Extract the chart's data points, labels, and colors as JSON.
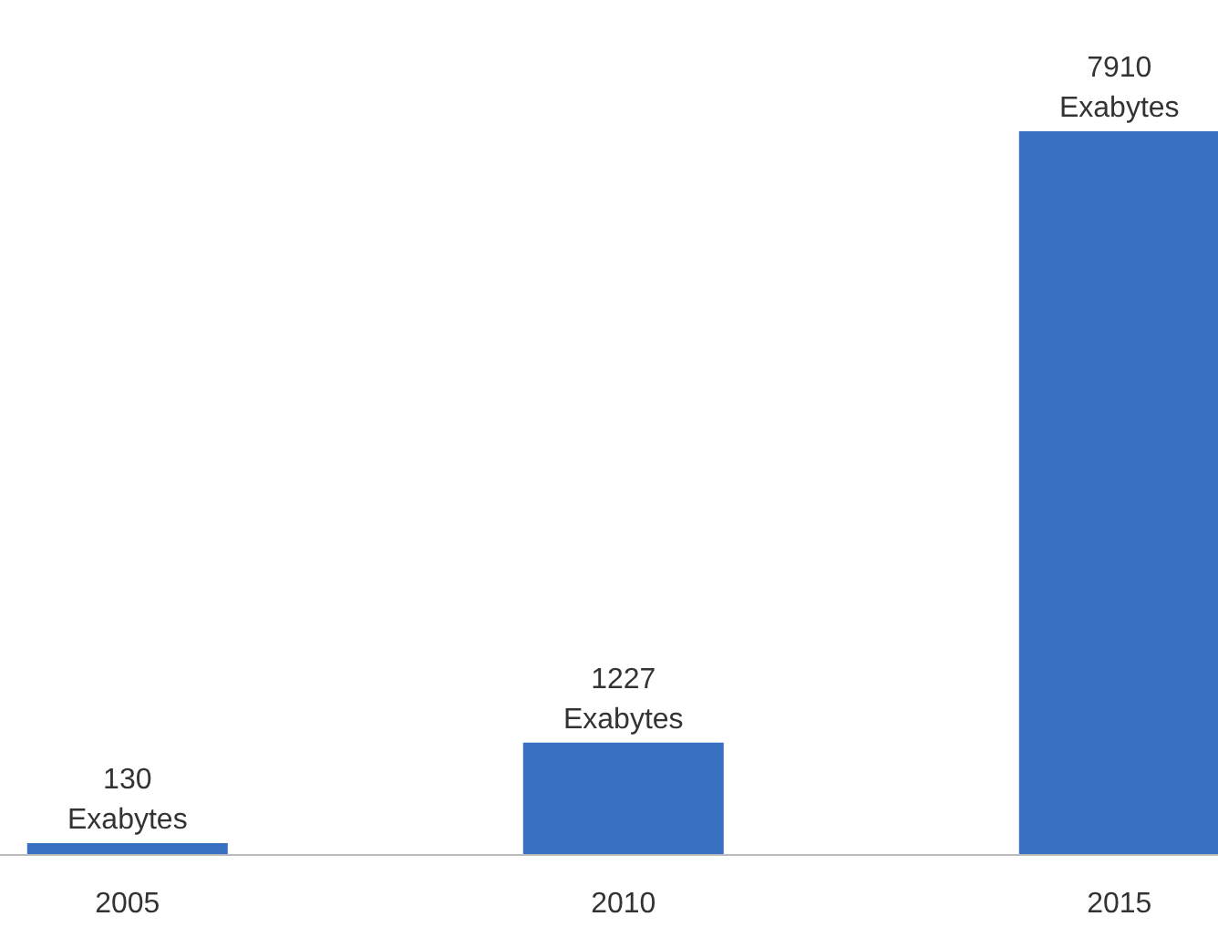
{
  "chart_data": {
    "type": "bar",
    "categories": [
      "2005",
      "2010",
      "2015"
    ],
    "values": [
      130,
      1227,
      7910
    ],
    "color": "#3a70c2",
    "value_labels": [
      "130 Exabytes",
      "1227 Exabytes",
      "7910 Exabytes"
    ]
  }
}
